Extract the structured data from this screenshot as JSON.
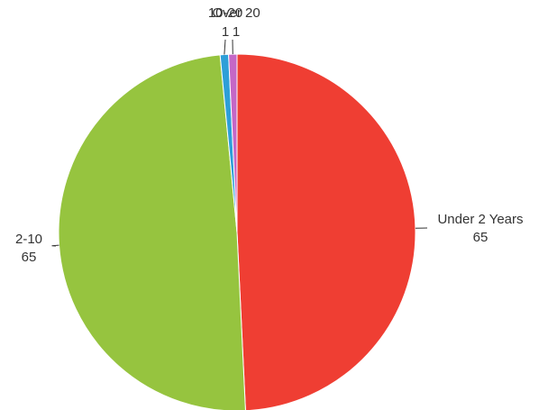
{
  "chart_data": {
    "type": "pie",
    "slices": [
      {
        "label": "Under 2 Years",
        "value": 65,
        "value_label": "65",
        "color": "#ef3e33"
      },
      {
        "label": "2-10",
        "value": 65,
        "value_label": "65",
        "color": "#96c43f"
      },
      {
        "label": "10-20",
        "value": 1,
        "value_label": "1",
        "color": "#2e9fd8"
      },
      {
        "label": "Over 20",
        "value": 1,
        "value_label": "1",
        "color": "#c567c6"
      }
    ],
    "legend": "none",
    "labels": "outside-with-leader-lines"
  }
}
